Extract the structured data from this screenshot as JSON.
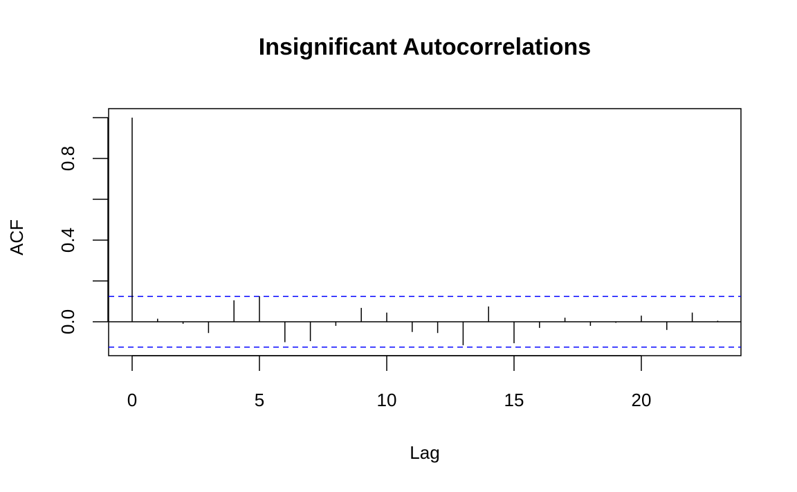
{
  "chart_data": {
    "type": "bar",
    "title": "Insignificant Autocorrelations",
    "xlabel": "Lag",
    "ylabel": "ACF",
    "xlim": [
      -0.9,
      24
    ],
    "ylim": [
      -0.17,
      1.0
    ],
    "x_ticks": [
      0,
      5,
      10,
      15,
      20
    ],
    "y_ticks": [
      0.0,
      0.4,
      0.8
    ],
    "y_tick_labels": [
      "0.0",
      "0.4",
      "0.8"
    ],
    "x_tick_labels": [
      "0",
      "5",
      "10",
      "15",
      "20"
    ],
    "y_minor_ticks": [
      -0.0,
      0.2,
      0.6,
      1.0
    ],
    "lags": [
      0,
      1,
      2,
      3,
      4,
      5,
      6,
      7,
      8,
      9,
      10,
      11,
      12,
      13,
      14,
      15,
      16,
      17,
      18,
      19,
      20,
      21,
      22,
      23
    ],
    "acf": [
      1.0,
      0.015,
      -0.01,
      -0.055,
      0.105,
      0.125,
      -0.1,
      -0.095,
      -0.02,
      0.068,
      0.045,
      -0.05,
      -0.055,
      -0.115,
      0.075,
      -0.105,
      -0.03,
      0.02,
      -0.02,
      -0.005,
      0.03,
      -0.04,
      0.045,
      0.005
    ],
    "confidence_bound": 0.124,
    "bound_color": "#0000ff",
    "bar_color": "#000000",
    "grid": false
  }
}
